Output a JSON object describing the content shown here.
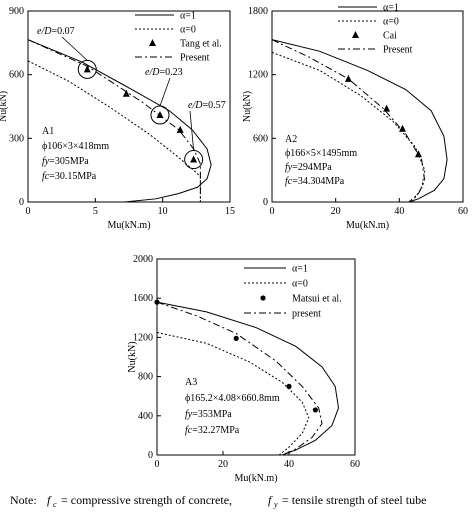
{
  "legend_labels": {
    "alpha1": "α=1",
    "alpha0": "α=0",
    "present_cap": "Present",
    "present_lower": "present"
  },
  "note": {
    "prefix": "Note:",
    "fc_sym": "f",
    "fc_sub": "c",
    "fc_text": "= compressive strength of concrete,",
    "fy_sym": "f",
    "fy_sub": "y",
    "fy_text": "= tensile strength of steel tube"
  },
  "chart_data": [
    {
      "id": "A1",
      "type": "line",
      "xlabel": "Mu(kN.m)",
      "ylabel": "Nu(kN)",
      "xlim": [
        0,
        15
      ],
      "ylim": [
        0,
        900
      ],
      "xticks": [
        "0",
        "5",
        "10",
        "15"
      ],
      "yticks": [
        "0",
        "300",
        "600",
        "900"
      ],
      "legend": [
        "α=1",
        "α=0",
        "Tang et al.",
        "Present"
      ],
      "annotations": [
        "e/D=0.07",
        "e/D=0.23",
        "e/D=0.57"
      ],
      "specimen": [
        "A1",
        "ϕ106×3×418mm",
        "fy=305MPa",
        "fc=30.15MPa"
      ],
      "series": [
        {
          "name": "α=1",
          "style": "solid",
          "x": [
            0,
            4,
            8,
            10.5,
            12.2,
            13.3,
            13.6,
            13.3,
            12.6,
            11.2,
            9.5,
            7.2
          ],
          "y": [
            765,
            660,
            520,
            430,
            340,
            250,
            175,
            110,
            70,
            40,
            15,
            0
          ]
        },
        {
          "name": "α=0",
          "style": "dotted",
          "x": [
            0,
            3,
            6,
            9,
            11,
            12.3,
            12.8,
            12.8
          ],
          "y": [
            665,
            570,
            450,
            320,
            220,
            150,
            120,
            0
          ]
        },
        {
          "name": "Present",
          "style": "dashdot",
          "x": [
            0,
            4.4,
            8.5,
            11.2,
            12.3,
            12.8,
            12.8,
            12.8
          ],
          "y": [
            765,
            640,
            470,
            340,
            250,
            180,
            150,
            0
          ]
        },
        {
          "name": "Tang et al.",
          "style": "markers",
          "marker": "triangle",
          "x": [
            4.4,
            7.3,
            9.8,
            11.3,
            12.3
          ],
          "y": [
            625,
            510,
            410,
            340,
            200
          ]
        }
      ],
      "circles": [
        {
          "x": 4.4,
          "y": 625
        },
        {
          "x": 9.8,
          "y": 410
        },
        {
          "x": 12.3,
          "y": 200
        }
      ]
    },
    {
      "id": "A2",
      "type": "line",
      "xlabel": "Mu(kN.m)",
      "ylabel": "Nu(kN)",
      "xlim": [
        0,
        60
      ],
      "ylim": [
        0,
        1800
      ],
      "xticks": [
        "0",
        "20",
        "40",
        "60"
      ],
      "yticks": [
        "0",
        "600",
        "1200",
        "1800"
      ],
      "legend": [
        "α=1",
        "α=0",
        "Cai",
        "Present"
      ],
      "specimen": [
        "A2",
        "ϕ166×5×1495mm",
        "fy=294MPa",
        "fc=34.304MPa"
      ],
      "series": [
        {
          "name": "α=1",
          "style": "solid",
          "x": [
            0,
            15,
            30,
            42,
            50,
            54,
            55,
            54,
            51,
            46,
            43
          ],
          "y": [
            1530,
            1420,
            1240,
            1060,
            860,
            620,
            400,
            220,
            110,
            30,
            0
          ]
        },
        {
          "name": "α=0",
          "style": "dotted",
          "x": [
            0,
            15,
            28,
            38,
            45,
            48,
            47,
            44
          ],
          "y": [
            1410,
            1240,
            1000,
            760,
            520,
            300,
            130,
            0
          ]
        },
        {
          "name": "Present",
          "style": "dashdot",
          "x": [
            0,
            12,
            24,
            35,
            42,
            47,
            48,
            46,
            43
          ],
          "y": [
            1530,
            1360,
            1160,
            880,
            640,
            400,
            200,
            80,
            0
          ]
        },
        {
          "name": "Cai",
          "style": "markers",
          "marker": "triangle",
          "x": [
            24,
            36,
            41,
            46
          ],
          "y": [
            1160,
            880,
            690,
            450
          ]
        }
      ]
    },
    {
      "id": "A3",
      "type": "line",
      "xlabel": "Mu(kN.m)",
      "ylabel": "Nu(kN)",
      "xlim": [
        0,
        60
      ],
      "ylim": [
        0,
        2000
      ],
      "xticks": [
        "0",
        "20",
        "40",
        "60"
      ],
      "yticks": [
        "0",
        "400",
        "800",
        "1200",
        "1600",
        "2000"
      ],
      "legend": [
        "α=1",
        "α=0",
        "Matsui et al.",
        "present"
      ],
      "specimen": [
        "A3",
        "ϕ165.2×4.08×660.8mm",
        "fy=353MPa",
        "fc=32.27MPa"
      ],
      "series": [
        {
          "name": "α=1",
          "style": "solid",
          "x": [
            0,
            15,
            30,
            42,
            50,
            54,
            55,
            53,
            48,
            42,
            38
          ],
          "y": [
            1560,
            1460,
            1300,
            1110,
            900,
            700,
            480,
            300,
            150,
            50,
            0
          ]
        },
        {
          "name": "α=0",
          "style": "dotted",
          "x": [
            0,
            15,
            28,
            38,
            44,
            46,
            44,
            40,
            37
          ],
          "y": [
            1250,
            1140,
            950,
            740,
            540,
            380,
            220,
            80,
            0
          ]
        },
        {
          "name": "present",
          "style": "dashdot",
          "x": [
            0,
            12,
            24,
            36,
            44,
            49,
            50,
            47,
            42,
            38
          ],
          "y": [
            1560,
            1420,
            1240,
            960,
            700,
            480,
            320,
            180,
            60,
            0
          ]
        },
        {
          "name": "Matsui et al.",
          "style": "markers",
          "marker": "circle",
          "x": [
            0,
            24,
            40,
            48
          ],
          "y": [
            1560,
            1190,
            700,
            460
          ]
        }
      ]
    }
  ]
}
